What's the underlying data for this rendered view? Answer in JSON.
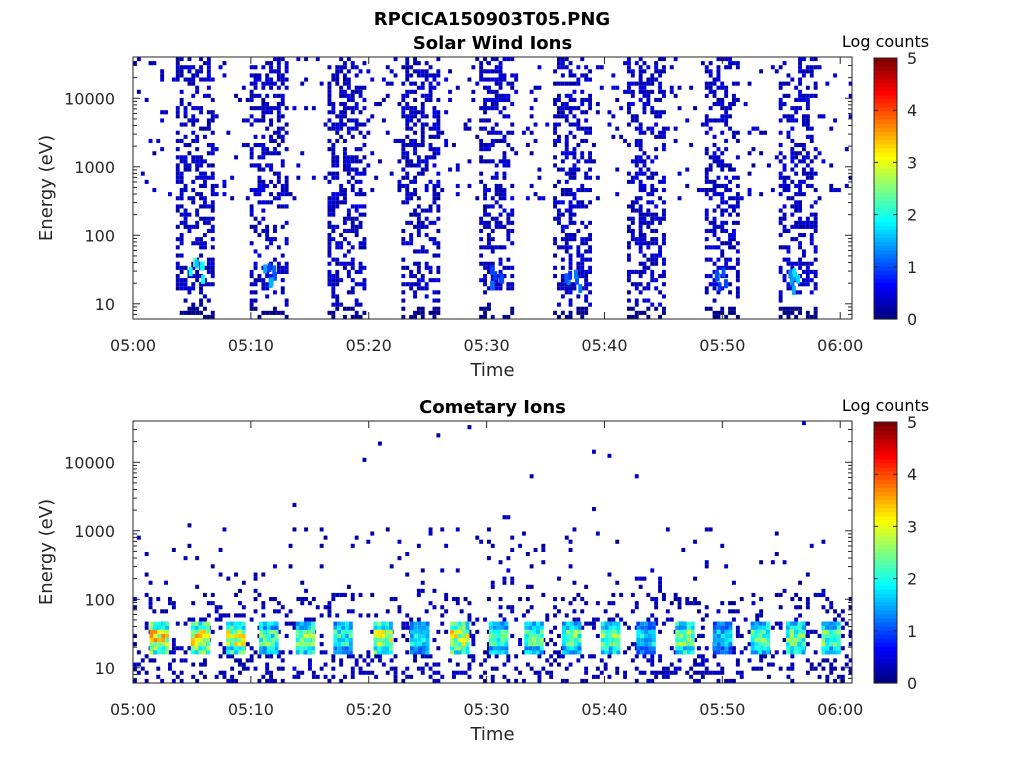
{
  "figure": {
    "title": "RPCICA150903T05.PNG"
  },
  "chart_data": [
    {
      "type": "heatmap",
      "title": "Solar Wind Ions",
      "xlabel": "Time",
      "ylabel": "Energy (eV)",
      "xlim": [
        "05:00",
        "06:01"
      ],
      "x_ticks": [
        "05:00",
        "05:10",
        "05:20",
        "05:30",
        "05:40",
        "05:50",
        "06:00"
      ],
      "yscale": "log",
      "ylim": [
        6,
        40000
      ],
      "y_ticks": [
        "10",
        "100",
        "1000",
        "10000"
      ],
      "colorbar": {
        "label": "Log counts",
        "range": [
          0,
          5
        ],
        "ticks": [
          "0",
          "1",
          "2",
          "3",
          "4",
          "5"
        ],
        "colormap": "jet"
      },
      "grid": false,
      "scan_centers_min": [
        5.2,
        11.5,
        18.0,
        24.3,
        30.7,
        37.2,
        43.5,
        49.8,
        56.2
      ],
      "hotspots": [
        {
          "t_min": 5.2,
          "energy_ev": 30,
          "log_counts": 2.5
        },
        {
          "t_min": 11.5,
          "energy_ev": 25,
          "log_counts": 1.6
        },
        {
          "t_min": 30.7,
          "energy_ev": 22,
          "log_counts": 1.2
        },
        {
          "t_min": 37.2,
          "energy_ev": 22,
          "log_counts": 1.3
        },
        {
          "t_min": 49.8,
          "energy_ev": 22,
          "log_counts": 1.3
        },
        {
          "t_min": 56.2,
          "energy_ev": 22,
          "log_counts": 1.9
        }
      ]
    },
    {
      "type": "heatmap",
      "title": "Cometary Ions",
      "xlabel": "Time",
      "ylabel": "Energy (eV)",
      "xlim": [
        "05:00",
        "06:01"
      ],
      "x_ticks": [
        "05:00",
        "05:10",
        "05:20",
        "05:30",
        "05:40",
        "05:50",
        "06:00"
      ],
      "yscale": "log",
      "ylim": [
        6,
        40000
      ],
      "y_ticks": [
        "10",
        "100",
        "1000",
        "10000"
      ],
      "colorbar": {
        "label": "Log counts",
        "range": [
          0,
          5
        ],
        "ticks": [
          "0",
          "1",
          "2",
          "3",
          "4",
          "5"
        ],
        "colormap": "jet"
      },
      "grid": false,
      "band_centers_min": [
        2.2,
        5.7,
        8.7,
        11.5,
        14.6,
        17.8,
        21.2,
        24.3,
        27.7,
        31.0,
        34.0,
        37.2,
        40.5,
        43.5,
        46.8,
        50.0,
        53.2,
        56.2,
        59.2
      ],
      "band_peak_log_counts": [
        3.8,
        3.9,
        3.5,
        2.7,
        3.0,
        2.5,
        3.5,
        2.2,
        3.6,
        2.6,
        2.7,
        2.8,
        3.0,
        2.2,
        3.1,
        2.0,
        2.8,
        3.0,
        2.9
      ],
      "band_energy_ev": [
        20,
        35
      ]
    }
  ]
}
